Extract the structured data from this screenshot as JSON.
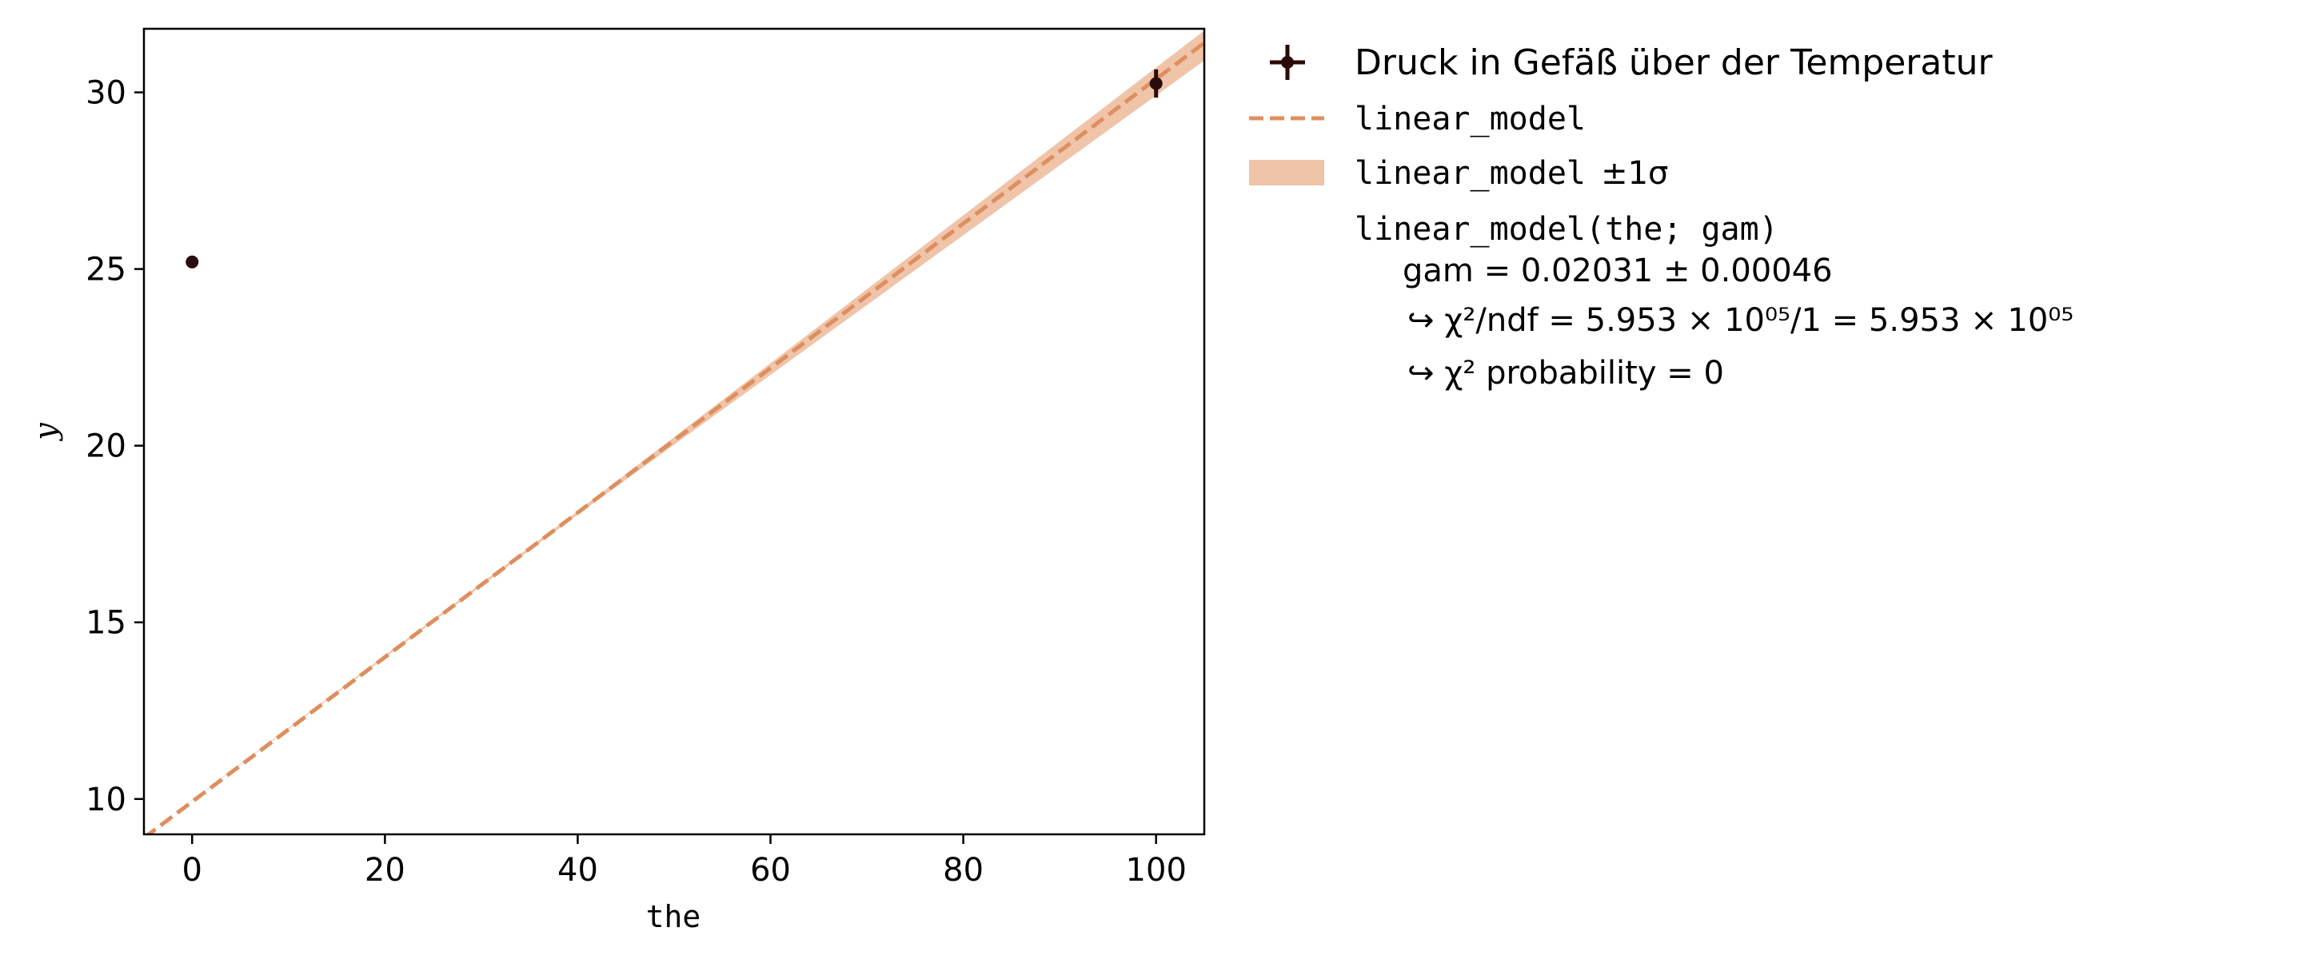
{
  "chart_data": {
    "type": "scatter",
    "xlabel": "the",
    "ylabel": "y",
    "xlim": [
      -5,
      105
    ],
    "ylim": [
      9,
      31.8
    ],
    "xticks": [
      0,
      20,
      40,
      60,
      80,
      100
    ],
    "yticks": [
      10,
      15,
      20,
      25,
      30
    ],
    "grid": false,
    "legend_position": "outside-right",
    "data_series": {
      "name": "Druck in Gefäß über der Temperatur",
      "color": "#2a0a0a",
      "points": [
        {
          "x": 0,
          "y": 25.2,
          "yerr": 0.0
        },
        {
          "x": 100,
          "y": 30.25,
          "yerr": 0.4
        }
      ]
    },
    "model_line": {
      "name": "linear_model",
      "color": "#de8f5f",
      "x": [
        -5,
        105
      ],
      "y": [
        8.9,
        31.4
      ]
    },
    "model_band": {
      "name": "linear_model",
      "name_suffix": "±1σ",
      "color": "#f0c4a8",
      "x": [
        -5,
        40,
        105
      ],
      "y_low": [
        8.95,
        18.05,
        30.9
      ],
      "y_high": [
        8.95,
        18.15,
        31.75
      ]
    },
    "fit_info": {
      "model_signature": "linear_model(the; gam)",
      "parameter": "gam = 0.02031 ± 0.00046",
      "chi2_ndf": "↪ χ²/ndf = 5.953 × 10⁰⁵/1 = 5.953 × 10⁰⁵",
      "chi2_prob": "↪ χ² probability = 0"
    }
  }
}
